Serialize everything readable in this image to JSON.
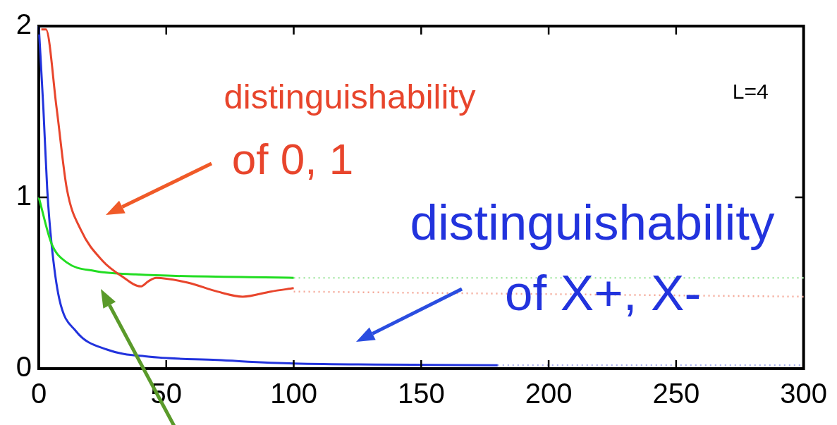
{
  "chart_data": {
    "type": "line",
    "xlim": [
      0,
      300
    ],
    "xticks": [
      0,
      50,
      100,
      150,
      200,
      250,
      300
    ],
    "ylim": [
      0,
      2
    ],
    "yticks": [
      0,
      1,
      2
    ],
    "grid": false,
    "legend": false,
    "marker": "none",
    "annotations": [
      "distinguishability\nof 0, 1",
      "distinguishability\nof X+, X-",
      "L=4"
    ],
    "series": [
      {
        "color": "#e8452c",
        "line_style": "solid",
        "x": [
          1,
          2.8,
          7,
          11,
          16.5,
          25,
          32.5,
          40,
          43,
          46,
          59,
          70,
          80,
          91,
          100
        ],
        "values": [
          1.98,
          1.98,
          1.52,
          1.05,
          0.81,
          0.63,
          0.54,
          0.48,
          0.51,
          0.53,
          0.5,
          0.45,
          0.42,
          0.45,
          0.47
        ]
      },
      {
        "color": "#f4a898",
        "line_style": "dotted",
        "x": [
          100,
          300
        ],
        "values": [
          0.45,
          0.42
        ]
      },
      {
        "color": "#22dd22",
        "line_style": "solid",
        "x": [
          0,
          5,
          11,
          22,
          38,
          100
        ],
        "values": [
          1,
          0.73,
          0.62,
          0.57,
          0.55,
          0.53
        ]
      },
      {
        "color": "#a8e8a8",
        "line_style": "dotted",
        "x": [
          100,
          300
        ],
        "values": [
          0.53,
          0.53
        ]
      },
      {
        "color": "#2233dd",
        "line_style": "solid",
        "x": [
          0,
          1.8,
          3.3,
          5,
          8,
          14.5,
          27,
          43,
          70,
          100,
          180
        ],
        "values": [
          2,
          1.52,
          1.05,
          0.73,
          0.41,
          0.22,
          0.11,
          0.07,
          0.05,
          0.03,
          0.02
        ]
      },
      {
        "color": "#a8b0f0",
        "line_style": "dotted",
        "x": [
          180,
          300
        ],
        "values": [
          0.02,
          0.02
        ]
      }
    ]
  }
}
